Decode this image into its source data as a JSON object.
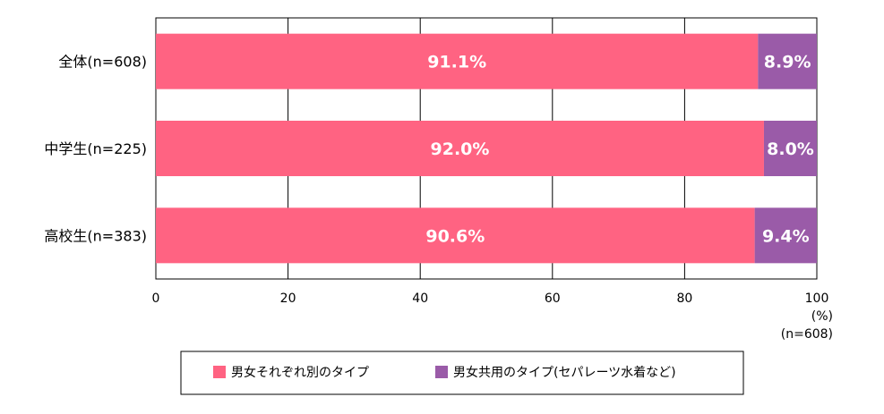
{
  "chart_data": {
    "type": "bar",
    "orientation": "horizontal",
    "stacked": true,
    "categories": [
      "全体(n=608)",
      "中学生(n=225)",
      "高校生(n=383)"
    ],
    "series": [
      {
        "name": "男女それぞれ別のタイプ",
        "color": "#ff6382",
        "values": [
          91.1,
          92.0,
          90.6
        ],
        "labels": [
          "91.1%",
          "92.0%",
          "90.6%"
        ]
      },
      {
        "name": "男女共用のタイプ(セパレーツ水着など)",
        "color": "#9a5ba8",
        "values": [
          8.9,
          8.0,
          9.4
        ],
        "labels": [
          "8.9%",
          "8.0%",
          "9.4%"
        ]
      }
    ],
    "xlim": [
      0,
      100
    ],
    "xticks": [
      0,
      20,
      40,
      60,
      80,
      100
    ],
    "xtick_labels": [
      "0",
      "20",
      "40",
      "60",
      "80",
      "100"
    ],
    "unit_label": "(%)",
    "sample_note": "(n=608)",
    "grid": true,
    "legend_position": "bottom"
  }
}
